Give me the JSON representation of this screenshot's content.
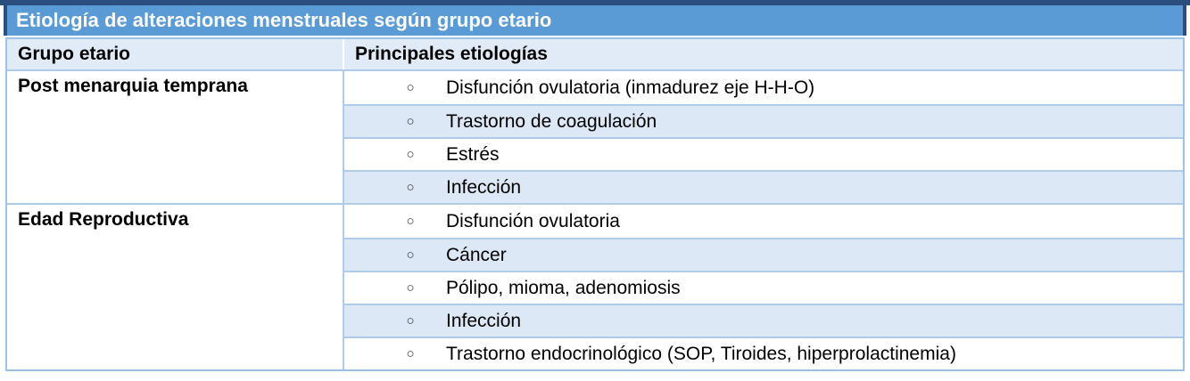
{
  "table": {
    "title": "Etiología de alteraciones menstruales según grupo etario",
    "headers": {
      "group": "Grupo etario",
      "etiologies": "Principales etiologías"
    },
    "bullet": "○",
    "groups": [
      {
        "label": "Post menarquia temprana",
        "items": [
          "Disfunción ovulatoria (inmadurez eje H-H-O)",
          "Trastorno de coagulación",
          "Estrés",
          "Infección"
        ]
      },
      {
        "label": "Edad Reproductiva",
        "items": [
          "Disfunción ovulatoria",
          "Cáncer",
          "Pólipo, mioma, adenomiosis",
          "Infección",
          "Trastorno endocrinológico (SOP, Tiroides, hiperprolactinemia)"
        ]
      }
    ]
  },
  "colors": {
    "title_bg": "#5b9bd5",
    "title_text": "#ffffff",
    "title_border": "#2a4f7e",
    "header_bg": "#e1ebf7",
    "band_bg": "#dce8f5",
    "row_border": "#b0cbe8",
    "outer_border": "#9cc3e5",
    "body_text": "#000000"
  }
}
